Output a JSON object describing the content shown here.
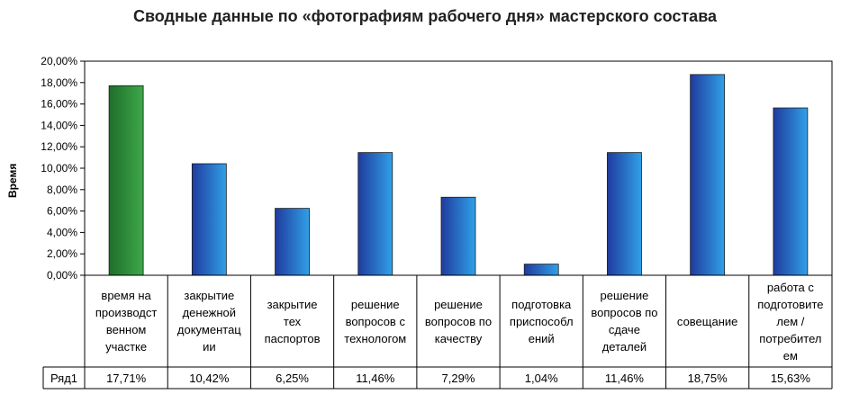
{
  "chart_data": {
    "type": "bar",
    "title": "Сводные данные по «фотографиям рабочего дня» мастерского состава",
    "ylabel": "Время",
    "xlabel": "",
    "ylim": [
      0,
      20
    ],
    "yticks": [
      "0,00%",
      "2,00%",
      "4,00%",
      "6,00%",
      "8,00%",
      "10,00%",
      "12,00%",
      "14,00%",
      "16,00%",
      "18,00%",
      "20,00%"
    ],
    "grid": false,
    "categories": [
      "время на производст венном участке",
      "закрытие денежной документац ии",
      "закрытие тех паспортов",
      "решение вопросов с технологом",
      "решение вопросов по качеству",
      "подготовка приспособл ений",
      "решение вопросов по сдаче деталей",
      "совещание",
      "работа с подготовите лем / потребител ем"
    ],
    "category_lines": [
      [
        "время на",
        "производст",
        "венном",
        "участке"
      ],
      [
        "закрытие",
        "денежной",
        "документац",
        "ии"
      ],
      [
        "закрытие",
        "тех",
        "паспортов"
      ],
      [
        "решение",
        "вопросов с",
        "технологом"
      ],
      [
        "решение",
        "вопросов по",
        "качеству"
      ],
      [
        "подготовка",
        "приспособл",
        "ений"
      ],
      [
        "решение",
        "вопросов по",
        "сдаче",
        "деталей"
      ],
      [
        "совещание"
      ],
      [
        "работа с",
        "подготовите",
        "лем /",
        "потребител",
        "ем"
      ]
    ],
    "series": [
      {
        "name": "Ряд1",
        "values": [
          17.71,
          10.42,
          6.25,
          11.46,
          7.29,
          1.04,
          11.46,
          18.75,
          15.63
        ],
        "labels": [
          "17,71%",
          "10,42%",
          "6,25%",
          "11,46%",
          "7,29%",
          "1,04%",
          "11,46%",
          "18,75%",
          "15,63%"
        ]
      }
    ],
    "colors": {
      "highlight_top": "#3fa84a",
      "highlight_bottom": "#1e6e2a",
      "bar_left": "#1f3b9e",
      "bar_right": "#31a0e8"
    }
  }
}
